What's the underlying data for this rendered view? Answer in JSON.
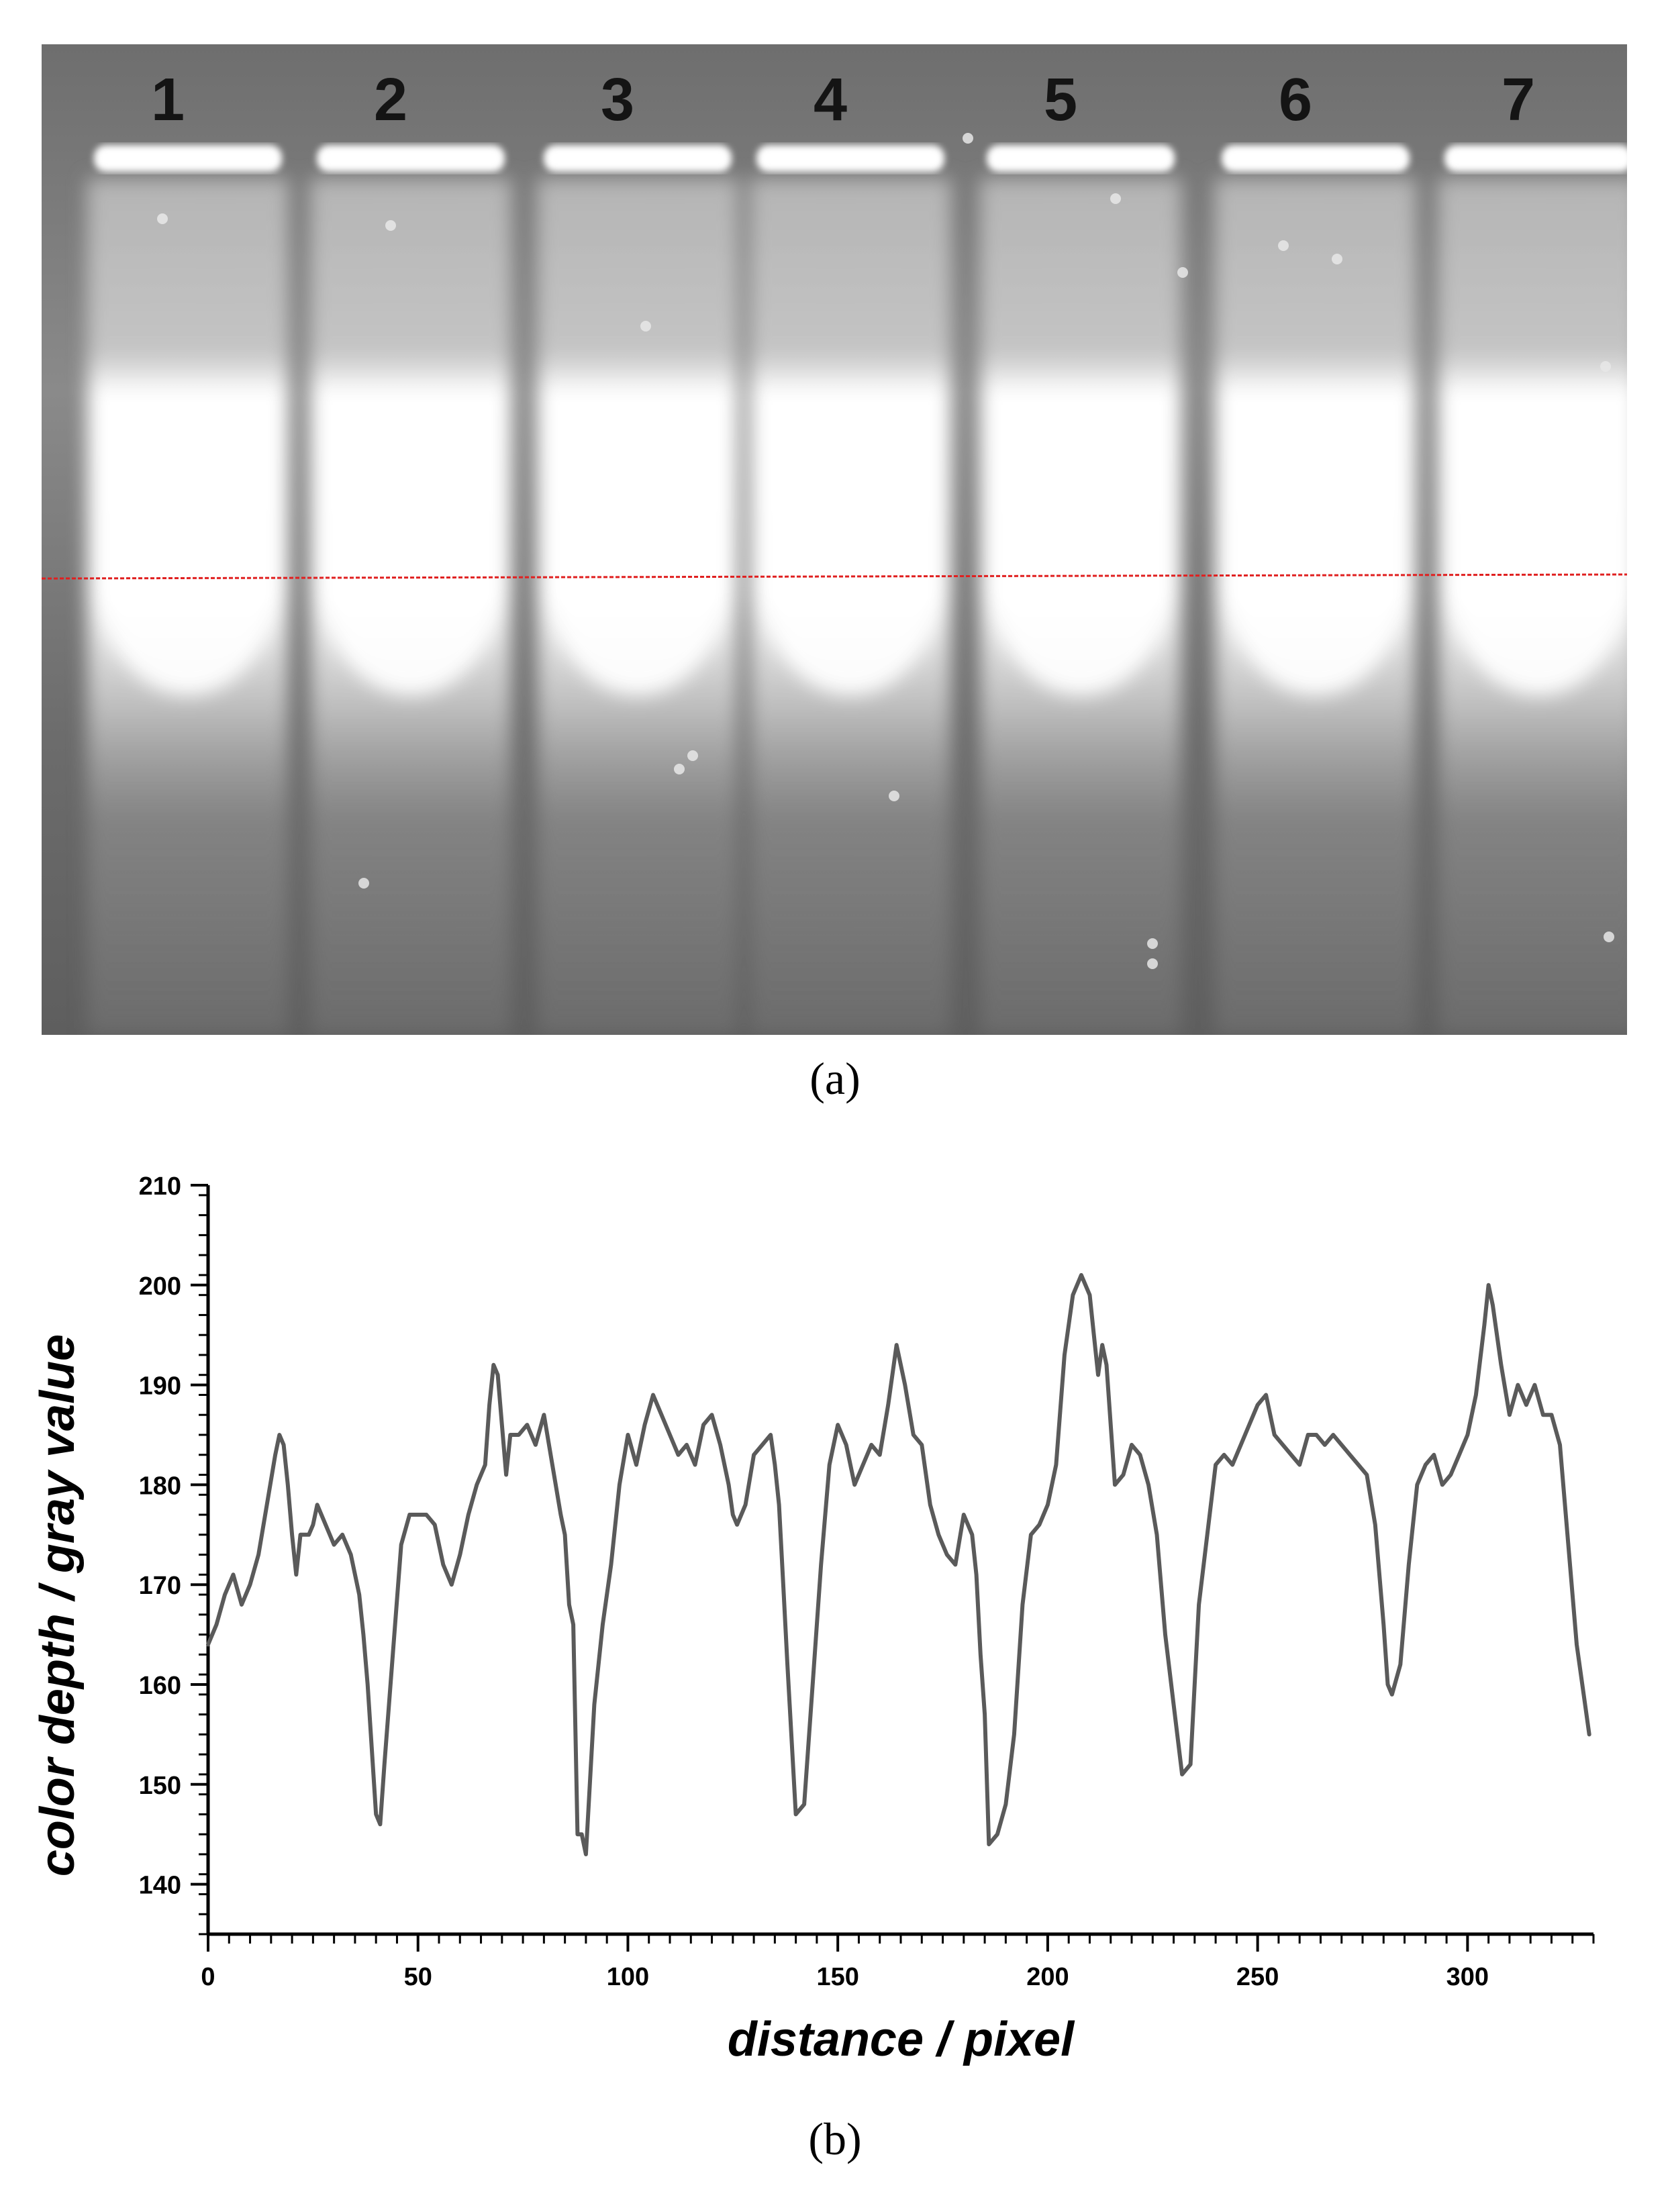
{
  "figure": {
    "panel_a": {
      "caption": "(a)",
      "lanes": [
        "1",
        "2",
        "3",
        "4",
        "5",
        "6",
        "7"
      ],
      "colors": {
        "gel_background": "#7a7a7a",
        "band": "#ffffff",
        "profile_line": "#e02020"
      }
    },
    "panel_b": {
      "caption": "(b)"
    }
  },
  "chart_data": {
    "type": "line",
    "title": "",
    "xlabel": "distance / pixel",
    "ylabel": "color depth / gray value",
    "xlim": [
      0,
      330
    ],
    "ylim": [
      135,
      210
    ],
    "xticks": [
      0,
      50,
      100,
      150,
      200,
      250,
      300
    ],
    "yticks": [
      140,
      150,
      160,
      170,
      180,
      190,
      200,
      210
    ],
    "grid": false,
    "line_color": "#5a5a5a",
    "series": [
      {
        "x": [
          0,
          2,
          4,
          6,
          8,
          10,
          12,
          14,
          16,
          17,
          18,
          19,
          20,
          21,
          22,
          24,
          25,
          26,
          28,
          30,
          32,
          34,
          36,
          37,
          38,
          40,
          41,
          42,
          44,
          46,
          48,
          50,
          52,
          54,
          56,
          58,
          60,
          62,
          64,
          66,
          67,
          68,
          69,
          70,
          71,
          72,
          74,
          76,
          78,
          80,
          82,
          84,
          85,
          86,
          87,
          88,
          89,
          90,
          92,
          94,
          96,
          98,
          100,
          102,
          104,
          106,
          108,
          110,
          112,
          114,
          116,
          118,
          120,
          122,
          124,
          125,
          126,
          128,
          130,
          132,
          134,
          135,
          136,
          137,
          138,
          140,
          142,
          144,
          146,
          148,
          150,
          152,
          154,
          156,
          158,
          160,
          162,
          164,
          166,
          168,
          170,
          172,
          174,
          176,
          178,
          180,
          182,
          183,
          184,
          185,
          186,
          188,
          190,
          192,
          194,
          196,
          198,
          200,
          202,
          204,
          206,
          208,
          209,
          210,
          211,
          212,
          213,
          214,
          216,
          218,
          220,
          222,
          224,
          226,
          228,
          230,
          232,
          234,
          235,
          236,
          238,
          240,
          242,
          244,
          246,
          248,
          250,
          252,
          254,
          256,
          258,
          260,
          262,
          264,
          266,
          268,
          270,
          272,
          274,
          276,
          278,
          280,
          281,
          282,
          284,
          286,
          288,
          290,
          292,
          294,
          296,
          298,
          300,
          302,
          304,
          305,
          306,
          308,
          310,
          312,
          314,
          316,
          318,
          320,
          322,
          324,
          326,
          328,
          329
        ],
        "y": [
          164,
          166,
          169,
          171,
          168,
          170,
          173,
          178,
          183,
          185,
          184,
          180,
          175,
          171,
          175,
          175,
          176,
          178,
          176,
          174,
          175,
          173,
          169,
          165,
          160,
          147,
          146,
          152,
          163,
          174,
          177,
          177,
          177,
          176,
          172,
          170,
          173,
          177,
          180,
          182,
          188,
          192,
          191,
          186,
          181,
          185,
          185,
          186,
          184,
          187,
          182,
          177,
          175,
          168,
          166,
          145,
          145,
          143,
          158,
          166,
          172,
          180,
          185,
          182,
          186,
          189,
          187,
          185,
          183,
          184,
          182,
          186,
          187,
          184,
          180,
          177,
          176,
          178,
          183,
          184,
          185,
          182,
          178,
          170,
          162,
          147,
          148,
          160,
          172,
          182,
          186,
          184,
          180,
          182,
          184,
          183,
          188,
          194,
          190,
          185,
          184,
          178,
          175,
          173,
          172,
          177,
          175,
          171,
          163,
          157,
          144,
          145,
          148,
          155,
          168,
          175,
          176,
          178,
          182,
          193,
          199,
          201,
          200,
          199,
          195,
          191,
          194,
          192,
          180,
          181,
          184,
          183,
          180,
          175,
          165,
          158,
          151,
          152,
          160,
          168,
          175,
          182,
          183,
          182,
          184,
          186,
          188,
          189,
          185,
          184,
          183,
          182,
          185,
          185,
          184,
          185,
          184,
          183,
          182,
          181,
          176,
          166,
          160,
          159,
          162,
          172,
          180,
          182,
          183,
          180,
          181,
          183,
          185,
          189,
          196,
          200,
          198,
          192,
          187,
          190,
          188,
          190,
          187,
          187,
          184,
          174,
          164,
          158,
          155
        ]
      }
    ]
  }
}
